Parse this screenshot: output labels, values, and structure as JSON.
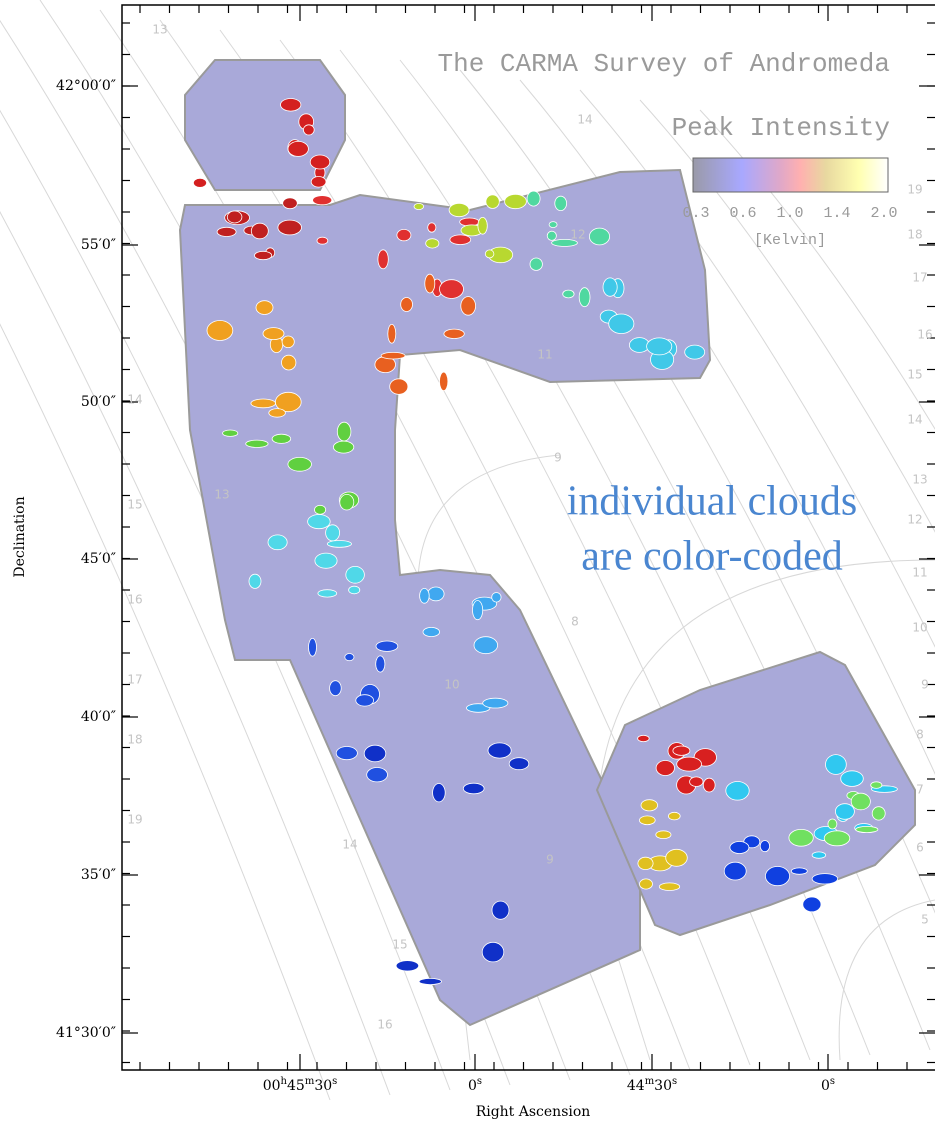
{
  "header": {
    "title": "The CARMA Survey of Andromeda",
    "subtitle": "Peak Intensity"
  },
  "colorbar": {
    "labels": [
      "0.3",
      "0.6",
      "1.0",
      "1.4",
      "2.0"
    ],
    "unit": "[Kelvin]"
  },
  "annotation": {
    "lines": [
      "individual clouds",
      "are color-coded"
    ]
  },
  "axes": {
    "x_label": "Right Ascension",
    "y_label": "Declination",
    "y_ticks": [
      "42°00′0″",
      "55′0″",
      "50′0″",
      "45′0″",
      "40′0″",
      "35′0″",
      "41°30′0″"
    ],
    "x_ticks": [
      [
        "00",
        "h",
        "45",
        "m",
        "30",
        "s"
      ],
      [
        "0",
        "s"
      ],
      [
        "44",
        "m",
        "30",
        "s"
      ],
      [
        "0",
        "s"
      ]
    ]
  },
  "contour_labels": [
    "19",
    "18",
    "17",
    "16",
    "15",
    "14",
    "13",
    "12",
    "11",
    "10",
    "9",
    "8",
    "7",
    "6",
    "5",
    "13",
    "14",
    "15",
    "16",
    "17",
    "18",
    "19",
    "12",
    "11",
    "10",
    "9",
    "9",
    "8",
    "13",
    "14",
    "14",
    "15",
    "16"
  ]
}
